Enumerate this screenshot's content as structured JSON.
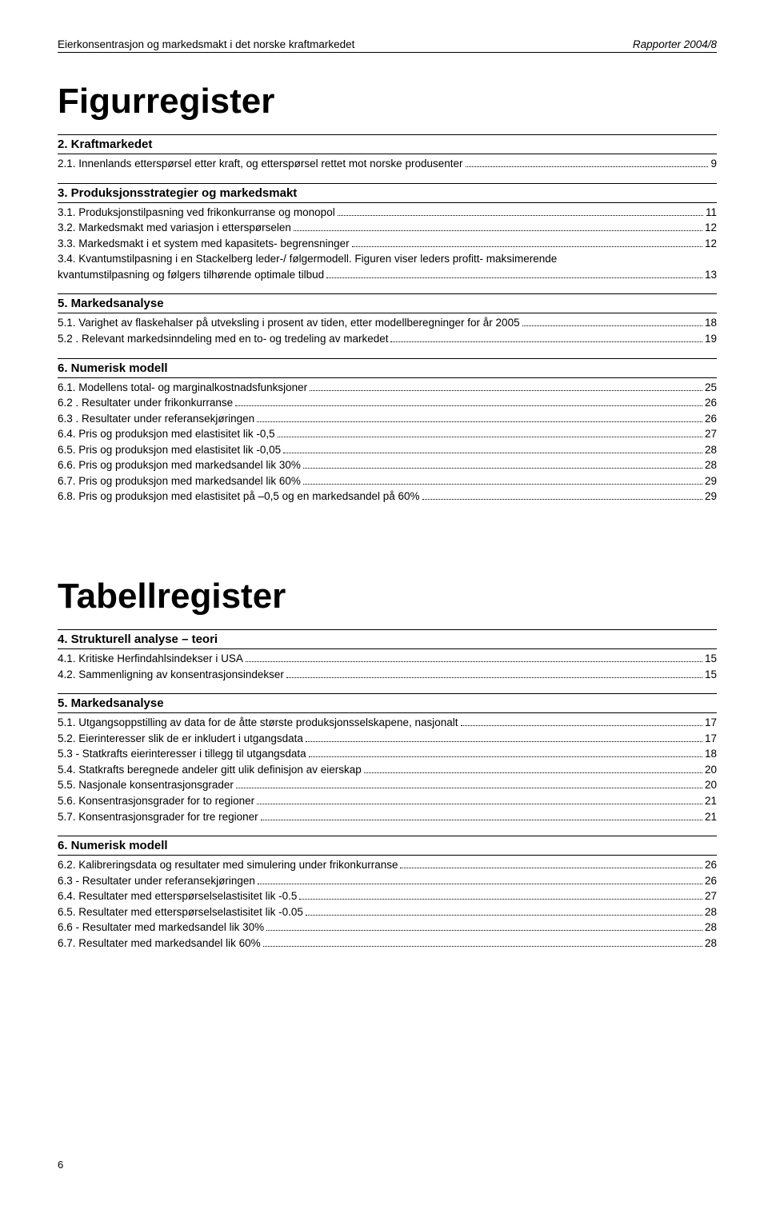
{
  "header": {
    "left": "Eierkonsentrasjon og markedsmakt i det norske kraftmarkedet",
    "right": "Rapporter 2004/8"
  },
  "title1": "Figurregister",
  "title2": "Tabellregister",
  "pagenum": "6",
  "figures": [
    {
      "heading": "2.   Kraftmarkedet",
      "items": [
        {
          "label": "2.1.  Innenlands etterspørsel etter kraft, og etterspørsel rettet mot norske produsenter",
          "page": "9"
        }
      ]
    },
    {
      "heading": "3.   Produksjonsstrategier og markedsmakt",
      "items": [
        {
          "label": "3.1.  Produksjonstilpasning ved frikonkurranse og monopol",
          "page": "11"
        },
        {
          "label": "3.2.  Markedsmakt med variasjon i etterspørselen",
          "page": "12"
        },
        {
          "label": "3.3.  Markedsmakt i et system med kapasitets- begrensninger",
          "page": "12"
        },
        {
          "label": "3.4.  Kvantumstilpasning i en Stackelberg leder-/ følgermodell. Figuren viser leders profitt- maksimerende",
          "page": ""
        },
        {
          "label": "        kvantumstilpasning og følgers tilhørende optimale tilbud",
          "page": "13"
        }
      ]
    },
    {
      "heading": "5.   Markedsanalyse",
      "items": [
        {
          "label": "5.1.  Varighet av flaskehalser på utveksling i prosent av tiden, etter modellberegninger for år 2005",
          "page": "18"
        },
        {
          "label": "5.2 . Relevant markedsinndeling med en to- og tredeling av markedet",
          "page": "19"
        }
      ]
    },
    {
      "heading": "6.   Numerisk modell",
      "items": [
        {
          "label": "6.1.  Modellens total- og marginalkostnadsfunksjoner",
          "page": "25"
        },
        {
          "label": "6.2 . Resultater under frikonkurranse",
          "page": "26"
        },
        {
          "label": "6.3 . Resultater under referansekjøringen",
          "page": "26"
        },
        {
          "label": "6.4.  Pris og produksjon med elastisitet lik -0,5",
          "page": "27"
        },
        {
          "label": "6.5.  Pris og produksjon med elastisitet lik -0,05",
          "page": "28"
        },
        {
          "label": "6.6.  Pris og produksjon med markedsandel lik 30%",
          "page": "28"
        },
        {
          "label": "6.7.  Pris og produksjon med markedsandel lik 60%",
          "page": "29"
        },
        {
          "label": "6.8.  Pris og produksjon med elastisitet på –0,5 og en markedsandel på 60%",
          "page": "29"
        }
      ]
    }
  ],
  "tables": [
    {
      "heading": "4.   Strukturell analyse – teori",
      "items": [
        {
          "label": "4.1.  Kritiske Herfindahlsindekser i USA",
          "page": "15"
        },
        {
          "label": "4.2.  Sammenligning av konsentrasjonsindekser",
          "page": "15"
        }
      ]
    },
    {
      "heading": "5.   Markedsanalyse",
      "items": [
        {
          "label": "5.1.  Utgangsoppstilling av data for de åtte største produksjonsselskapene, nasjonalt",
          "page": "17"
        },
        {
          "label": "5.2.  Eierinteresser slik de er inkludert i utgangsdata",
          "page": "17"
        },
        {
          "label": "5.3 - Statkrafts eierinteresser i tillegg til utgangsdata",
          "page": "18"
        },
        {
          "label": "5.4.  Statkrafts beregnede andeler gitt ulik definisjon av eierskap",
          "page": "20"
        },
        {
          "label": "5.5.  Nasjonale konsentrasjonsgrader",
          "page": "20"
        },
        {
          "label": "5.6.  Konsentrasjonsgrader for to regioner",
          "page": "21"
        },
        {
          "label": "5.7.  Konsentrasjonsgrader for tre regioner",
          "page": "21"
        }
      ]
    },
    {
      "heading": "6.   Numerisk modell",
      "items": [
        {
          "label": "6.2.  Kalibreringsdata og resultater med simulering under frikonkurranse",
          "page": "26"
        },
        {
          "label": "6.3 - Resultater under referansekjøringen",
          "page": "26"
        },
        {
          "label": "6.4.  Resultater med etterspørselselastisitet lik -0.5",
          "page": "27"
        },
        {
          "label": "6.5.  Resultater med etterspørselselastisitet lik -0.05",
          "page": "28"
        },
        {
          "label": "6.6 - Resultater med markedsandel lik 30%",
          "page": "28"
        },
        {
          "label": "6.7.  Resultater med markedsandel lik 60%",
          "page": "28"
        }
      ]
    }
  ]
}
